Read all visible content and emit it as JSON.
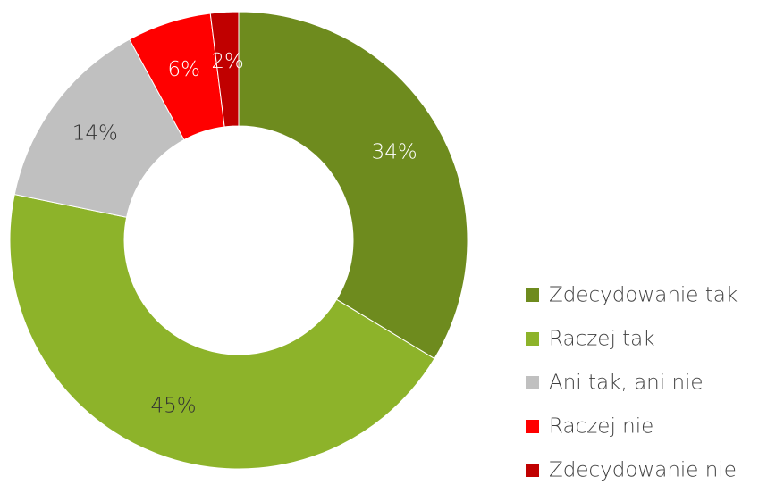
{
  "chart_data": {
    "type": "donut",
    "categories": [
      "Zdecydowanie tak",
      "Raczej tak",
      "Ani tak, ani nie",
      "Raczej nie",
      "Zdecydowanie nie"
    ],
    "values": [
      34,
      45,
      14,
      6,
      2
    ],
    "value_labels": [
      "34%",
      "45%",
      "14%",
      "6%",
      "2%"
    ],
    "colors": [
      "#6e8b1e",
      "#8db32a",
      "#c0c0c0",
      "#ff0000",
      "#c00000"
    ],
    "legend": "bottom-right"
  }
}
